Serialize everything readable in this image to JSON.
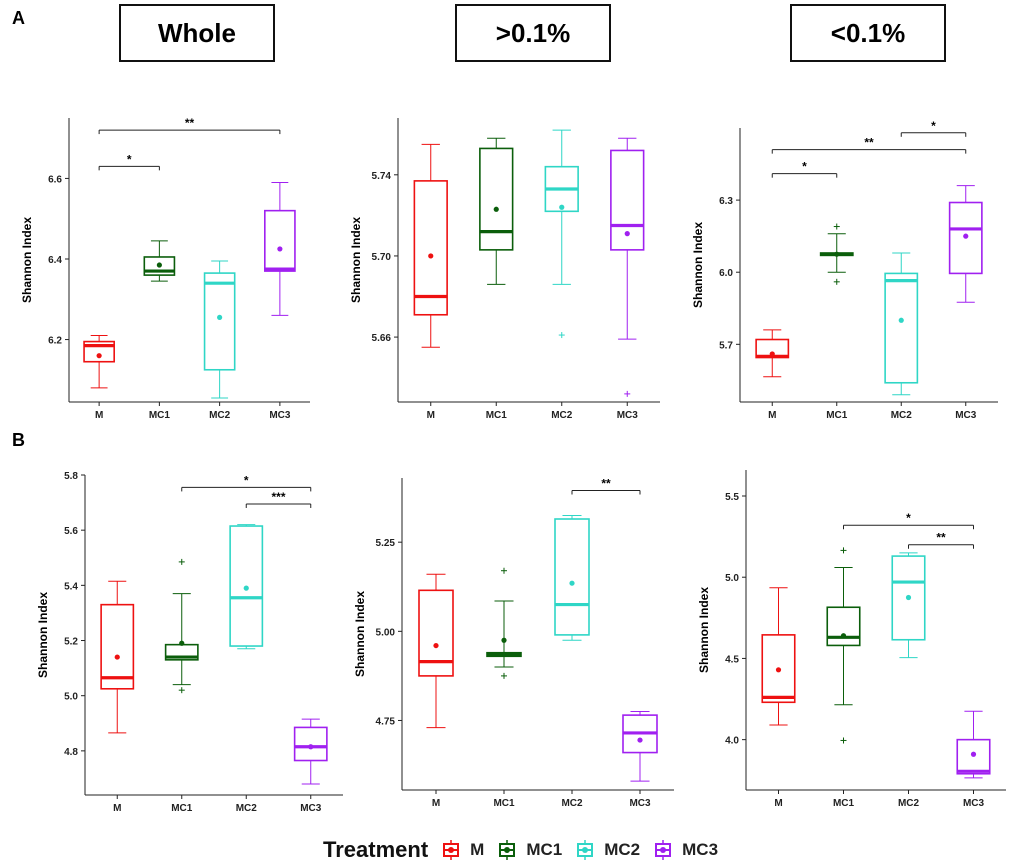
{
  "panel_labels": {
    "a": "A",
    "b": "B"
  },
  "headers": [
    "Whole",
    ">0.1%",
    "<0.1%"
  ],
  "legend": {
    "title": "Treatment",
    "items": [
      {
        "label": "M",
        "color": "#ee1111"
      },
      {
        "label": "MC1",
        "color": "#0b5e0b"
      },
      {
        "label": "MC2",
        "color": "#2fd6c6"
      },
      {
        "label": "MC3",
        "color": "#a020f0"
      }
    ]
  },
  "colors": [
    "#ee1111",
    "#0b5e0b",
    "#2fd6c6",
    "#a020f0"
  ],
  "chart_data": [
    {
      "type": "boxplot",
      "row": "A",
      "title": "Whole",
      "ylabel": "Shannon Index",
      "categories": [
        "M",
        "MC1",
        "MC2",
        "MC3"
      ],
      "ylim": [
        6.045,
        6.75
      ],
      "yticks": [
        6.2,
        6.4,
        6.6
      ],
      "boxes": [
        {
          "q1": 6.145,
          "median": 6.185,
          "q3": 6.195,
          "wlo": 6.08,
          "whi": 6.21,
          "mean": 6.16,
          "outliers": []
        },
        {
          "q1": 6.36,
          "median": 6.37,
          "q3": 6.405,
          "wlo": 6.345,
          "whi": 6.445,
          "mean": 6.385,
          "outliers": []
        },
        {
          "q1": 6.125,
          "median": 6.34,
          "q3": 6.365,
          "wlo": 6.055,
          "whi": 6.395,
          "mean": 6.255,
          "outliers": []
        },
        {
          "q1": 6.37,
          "median": 6.375,
          "q3": 6.52,
          "wlo": 6.26,
          "whi": 6.59,
          "mean": 6.425,
          "outliers": []
        }
      ],
      "significance": [
        {
          "from": 0,
          "to": 1,
          "y": 6.63,
          "label": "*"
        },
        {
          "from": 0,
          "to": 3,
          "y": 6.72,
          "label": "**"
        }
      ]
    },
    {
      "type": "boxplot",
      "row": "A",
      "title": ">0.1%",
      "ylabel": "Shannon Index",
      "categories": [
        "M",
        "MC1",
        "MC2",
        "MC3"
      ],
      "ylim": [
        5.628,
        5.768
      ],
      "yticks": [
        5.66,
        5.7,
        5.74
      ],
      "boxes": [
        {
          "q1": 5.671,
          "median": 5.68,
          "q3": 5.737,
          "wlo": 5.655,
          "whi": 5.755,
          "mean": 5.7,
          "outliers": []
        },
        {
          "q1": 5.703,
          "median": 5.712,
          "q3": 5.753,
          "wlo": 5.686,
          "whi": 5.758,
          "mean": 5.723,
          "outliers": []
        },
        {
          "q1": 5.722,
          "median": 5.733,
          "q3": 5.744,
          "wlo": 5.686,
          "whi": 5.762,
          "mean": 5.724,
          "outliers": [
            5.661
          ]
        },
        {
          "q1": 5.703,
          "median": 5.715,
          "q3": 5.752,
          "wlo": 5.659,
          "whi": 5.758,
          "mean": 5.711,
          "outliers": [
            5.632
          ]
        }
      ],
      "significance": []
    },
    {
      "type": "boxplot",
      "row": "A",
      "title": "<0.1%",
      "ylabel": "Shannon Index",
      "categories": [
        "M",
        "MC1",
        "MC2",
        "MC3"
      ],
      "ylim": [
        5.46,
        6.6
      ],
      "yticks": [
        5.7,
        6.0,
        6.3
      ],
      "boxes": [
        {
          "q1": 5.645,
          "median": 5.65,
          "q3": 5.72,
          "wlo": 5.565,
          "whi": 5.76,
          "mean": 5.66,
          "outliers": []
        },
        {
          "q1": 6.07,
          "median": 6.075,
          "q3": 6.08,
          "wlo": 6.0,
          "whi": 6.16,
          "mean": 6.075,
          "outliers": [
            5.96,
            6.19
          ]
        },
        {
          "q1": 5.54,
          "median": 5.965,
          "q3": 5.995,
          "wlo": 5.49,
          "whi": 6.08,
          "mean": 5.8,
          "outliers": []
        },
        {
          "q1": 5.995,
          "median": 6.18,
          "q3": 6.29,
          "wlo": 5.875,
          "whi": 6.36,
          "mean": 6.15,
          "outliers": []
        }
      ],
      "significance": [
        {
          "from": 0,
          "to": 1,
          "y": 6.41,
          "label": "*"
        },
        {
          "from": 0,
          "to": 3,
          "y": 6.51,
          "label": "**"
        },
        {
          "from": 2,
          "to": 3,
          "y": 6.58,
          "label": "*"
        }
      ]
    },
    {
      "type": "boxplot",
      "row": "B",
      "title": "Whole",
      "ylabel": "Shannon Index",
      "categories": [
        "M",
        "MC1",
        "MC2",
        "MC3"
      ],
      "ylim": [
        4.64,
        5.8
      ],
      "yticks": [
        4.8,
        5.0,
        5.2,
        5.4,
        5.6,
        5.8
      ],
      "boxes": [
        {
          "q1": 5.025,
          "median": 5.065,
          "q3": 5.33,
          "wlo": 4.865,
          "whi": 5.415,
          "mean": 5.14,
          "outliers": []
        },
        {
          "q1": 5.13,
          "median": 5.14,
          "q3": 5.185,
          "wlo": 5.04,
          "whi": 5.37,
          "mean": 5.19,
          "outliers": [
            5.02,
            5.485
          ]
        },
        {
          "q1": 5.18,
          "median": 5.355,
          "q3": 5.615,
          "wlo": 5.17,
          "whi": 5.62,
          "mean": 5.39,
          "outliers": []
        },
        {
          "q1": 4.765,
          "median": 4.815,
          "q3": 4.885,
          "wlo": 4.68,
          "whi": 4.915,
          "mean": 4.815,
          "outliers": []
        }
      ],
      "significance": [
        {
          "from": 1,
          "to": 3,
          "y": 5.755,
          "label": "*"
        },
        {
          "from": 2,
          "to": 3,
          "y": 5.695,
          "label": "***"
        }
      ]
    },
    {
      "type": "boxplot",
      "row": "B",
      "title": ">0.1%",
      "ylabel": "Shannon Index",
      "categories": [
        "M",
        "MC1",
        "MC2",
        "MC3"
      ],
      "ylim": [
        4.555,
        5.43
      ],
      "yticks": [
        4.75,
        5.0,
        5.25
      ],
      "boxes": [
        {
          "q1": 4.875,
          "median": 4.915,
          "q3": 5.115,
          "wlo": 4.73,
          "whi": 5.16,
          "mean": 4.96,
          "outliers": []
        },
        {
          "q1": 4.93,
          "median": 4.935,
          "q3": 4.94,
          "wlo": 4.9,
          "whi": 5.085,
          "mean": 4.975,
          "outliers": [
            4.875,
            5.17
          ]
        },
        {
          "q1": 4.99,
          "median": 5.075,
          "q3": 5.315,
          "wlo": 4.975,
          "whi": 5.325,
          "mean": 5.135,
          "outliers": []
        },
        {
          "q1": 4.66,
          "median": 4.715,
          "q3": 4.765,
          "wlo": 4.58,
          "whi": 4.775,
          "mean": 4.695,
          "outliers": []
        }
      ],
      "significance": [
        {
          "from": 2,
          "to": 3,
          "y": 5.395,
          "label": "**"
        }
      ]
    },
    {
      "type": "boxplot",
      "row": "B",
      "title": "<0.1%",
      "ylabel": "Shannon Index",
      "categories": [
        "M",
        "MC1",
        "MC2",
        "MC3"
      ],
      "ylim": [
        3.69,
        5.66
      ],
      "yticks": [
        4.0,
        4.5,
        5.0,
        5.5
      ],
      "boxes": [
        {
          "q1": 4.23,
          "median": 4.26,
          "q3": 4.645,
          "wlo": 4.09,
          "whi": 4.935,
          "mean": 4.43,
          "outliers": []
        },
        {
          "q1": 4.58,
          "median": 4.63,
          "q3": 4.815,
          "wlo": 4.215,
          "whi": 5.06,
          "mean": 4.64,
          "outliers": [
            3.995,
            5.165
          ]
        },
        {
          "q1": 4.615,
          "median": 4.97,
          "q3": 5.13,
          "wlo": 4.505,
          "whi": 5.15,
          "mean": 4.875,
          "outliers": []
        },
        {
          "q1": 3.79,
          "median": 3.805,
          "q3": 4.0,
          "wlo": 3.765,
          "whi": 4.175,
          "mean": 3.91,
          "outliers": []
        }
      ],
      "significance": [
        {
          "from": 1,
          "to": 3,
          "y": 5.32,
          "label": "*"
        },
        {
          "from": 2,
          "to": 3,
          "y": 5.2,
          "label": "**"
        }
      ]
    }
  ]
}
